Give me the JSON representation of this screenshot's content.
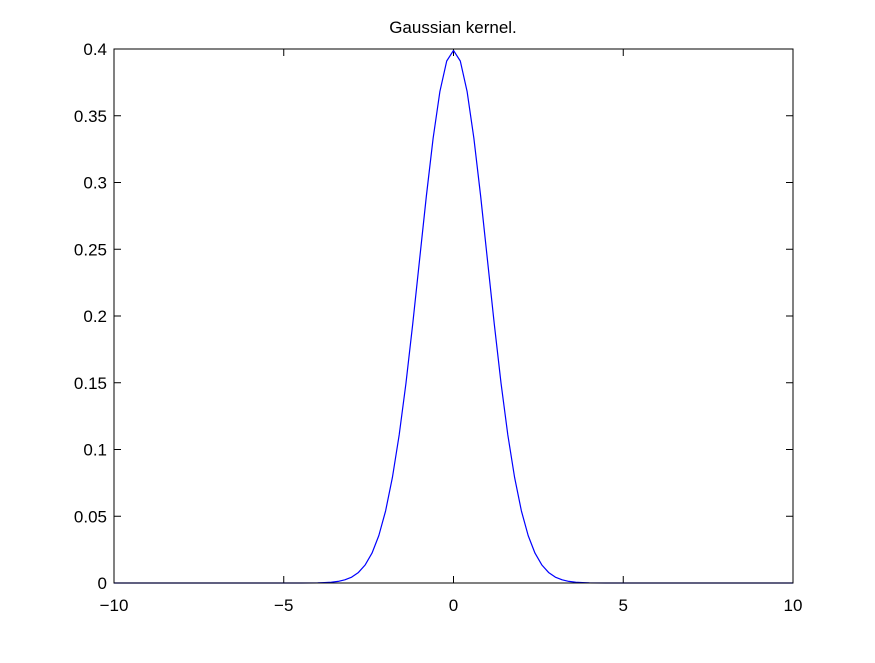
{
  "chart_data": {
    "type": "line",
    "title": "Gaussian kernel.",
    "xlabel": "",
    "ylabel": "",
    "xlim": [
      -10,
      10
    ],
    "ylim": [
      0,
      0.4
    ],
    "xticks": [
      {
        "value": -10,
        "label": "−10"
      },
      {
        "value": -5,
        "label": "−5"
      },
      {
        "value": 0,
        "label": "0"
      },
      {
        "value": 5,
        "label": "5"
      },
      {
        "value": 10,
        "label": "10"
      }
    ],
    "yticks": [
      {
        "value": 0,
        "label": "0"
      },
      {
        "value": 0.05,
        "label": "0.05"
      },
      {
        "value": 0.1,
        "label": "0.1"
      },
      {
        "value": 0.15,
        "label": "0.15"
      },
      {
        "value": 0.2,
        "label": "0.2"
      },
      {
        "value": 0.25,
        "label": "0.25"
      },
      {
        "value": 0.3,
        "label": "0.3"
      },
      {
        "value": 0.35,
        "label": "0.35"
      },
      {
        "value": 0.4,
        "label": "0.4"
      }
    ],
    "grid": false,
    "series": [
      {
        "color": "#0000ff",
        "x": [
          -10,
          -9,
          -8,
          -7,
          -6,
          -5,
          -4.5,
          -4,
          -3.8,
          -3.6,
          -3.4,
          -3.2,
          -3,
          -2.8,
          -2.6,
          -2.4,
          -2.2,
          -2,
          -1.8,
          -1.6,
          -1.4,
          -1.2,
          -1,
          -0.8,
          -0.6,
          -0.4,
          -0.2,
          0,
          0.2,
          0.4,
          0.6,
          0.8,
          1,
          1.2,
          1.4,
          1.6,
          1.8,
          2,
          2.2,
          2.4,
          2.6,
          2.8,
          3,
          3.2,
          3.4,
          3.6,
          3.8,
          4,
          4.5,
          5,
          6,
          7,
          8,
          9,
          10
        ],
        "y": [
          0,
          0,
          0,
          0,
          0,
          0,
          0,
          0.0001,
          0.0003,
          0.0006,
          0.0012,
          0.0024,
          0.0044,
          0.0079,
          0.0136,
          0.0224,
          0.0355,
          0.054,
          0.079,
          0.1109,
          0.1497,
          0.1942,
          0.242,
          0.2897,
          0.3332,
          0.3683,
          0.391,
          0.3989,
          0.391,
          0.3683,
          0.3332,
          0.2897,
          0.242,
          0.1942,
          0.1497,
          0.1109,
          0.079,
          0.054,
          0.0355,
          0.0224,
          0.0136,
          0.0079,
          0.0044,
          0.0024,
          0.0012,
          0.0006,
          0.0003,
          0.0001,
          0,
          0,
          0,
          0,
          0,
          0,
          0
        ]
      }
    ]
  }
}
